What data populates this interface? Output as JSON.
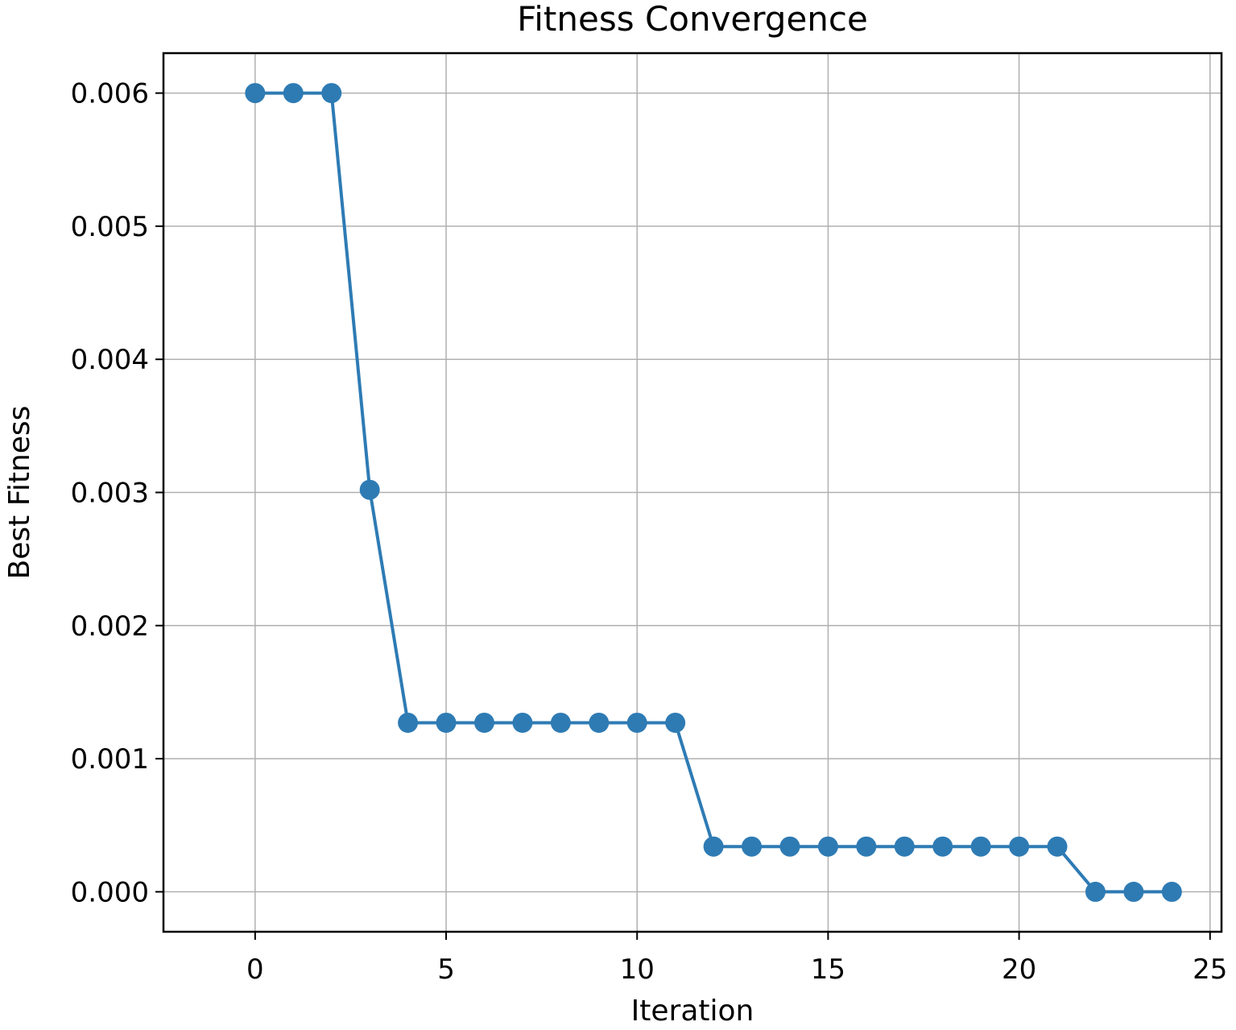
{
  "chart_data": {
    "type": "line",
    "title": "Fitness Convergence",
    "xlabel": "Iteration",
    "ylabel": "Best Fitness",
    "xlim": [
      -2.4,
      25.3
    ],
    "ylim": [
      -0.0003,
      0.0063
    ],
    "x_ticks": [
      0,
      5,
      10,
      15,
      20,
      25
    ],
    "x_tick_labels": [
      "0",
      "5",
      "10",
      "15",
      "20",
      "25"
    ],
    "y_ticks": [
      0.0,
      0.001,
      0.002,
      0.003,
      0.004,
      0.005,
      0.006
    ],
    "y_tick_labels": [
      "0.000",
      "0.001",
      "0.002",
      "0.003",
      "0.004",
      "0.005",
      "0.006"
    ],
    "grid": true,
    "series": [
      {
        "color": "#2e7bb4",
        "marker": "circle",
        "x": [
          0,
          1,
          2,
          3,
          4,
          5,
          6,
          7,
          8,
          9,
          10,
          11,
          12,
          13,
          14,
          15,
          16,
          17,
          18,
          19,
          20,
          21,
          22,
          23,
          24
        ],
        "y": [
          0.006,
          0.006,
          0.006,
          0.00302,
          0.00127,
          0.00127,
          0.00127,
          0.00127,
          0.00127,
          0.00127,
          0.00127,
          0.00127,
          0.00034,
          0.00034,
          0.00034,
          0.00034,
          0.00034,
          0.00034,
          0.00034,
          0.00034,
          0.00034,
          0.00034,
          0.0,
          0.0,
          0.0
        ]
      }
    ]
  }
}
